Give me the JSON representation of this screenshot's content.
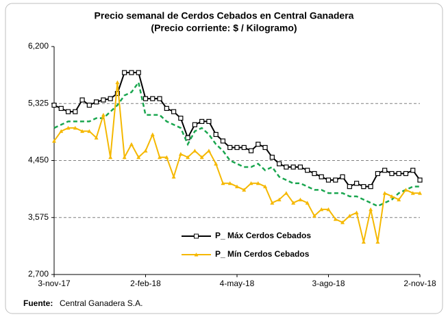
{
  "chart_data": {
    "type": "line",
    "title": "Precio semanal de Cerdos Cebados en Central Ganadera",
    "subtitle": "(Precio corriente: $ / Kilogramo)",
    "source_label": "Fuente:",
    "source": "Central Ganadera S.A.",
    "categories": [
      "3-nov-17",
      null,
      null,
      null,
      null,
      null,
      null,
      null,
      null,
      null,
      null,
      null,
      null,
      "2-feb-18",
      null,
      null,
      null,
      null,
      null,
      null,
      null,
      null,
      null,
      null,
      null,
      null,
      "4-may-18",
      null,
      null,
      null,
      null,
      null,
      null,
      null,
      null,
      null,
      null,
      null,
      null,
      "3-ago-18",
      null,
      null,
      null,
      null,
      null,
      null,
      null,
      null,
      null,
      null,
      null,
      null,
      "2-nov-18"
    ],
    "series": [
      {
        "name": "P_ Máx Cerdos Cebados",
        "color": "#000000",
        "marker": "square",
        "dash": false,
        "values": [
          5300,
          5250,
          5200,
          5200,
          5380,
          5300,
          5350,
          5380,
          5400,
          5480,
          5800,
          5800,
          5800,
          5400,
          5400,
          5400,
          5250,
          5200,
          5100,
          4800,
          5000,
          5050,
          5050,
          4850,
          4750,
          4650,
          4650,
          4650,
          4600,
          4700,
          4650,
          4500,
          4400,
          4350,
          4350,
          4350,
          4300,
          4250,
          4200,
          4150,
          4150,
          4200,
          4050,
          4100,
          4050,
          4050,
          4250,
          4300,
          4250,
          4250,
          4250,
          4300,
          4150
        ]
      },
      {
        "color": "#1aa64f",
        "marker": "none",
        "dash": true,
        "values": [
          4950,
          5000,
          5050,
          5050,
          5050,
          5050,
          5100,
          5100,
          5200,
          5300,
          5450,
          5500,
          5650,
          5150,
          5150,
          5150,
          5050,
          5000,
          4950,
          4700,
          4900,
          4950,
          4850,
          4700,
          4600,
          4450,
          4400,
          4350,
          4350,
          4400,
          4300,
          4350,
          4200,
          4150,
          4100,
          4100,
          4050,
          4000,
          4000,
          3950,
          3950,
          3950,
          3900,
          3900,
          3850,
          3800,
          3750,
          3800,
          3850,
          3950,
          4000,
          4050,
          4050
        ]
      },
      {
        "name": "P_ Mín Cerdos Cebados",
        "color": "#f5b800",
        "marker": "triangle",
        "dash": false,
        "values": [
          4750,
          4900,
          4950,
          4950,
          4900,
          4900,
          4800,
          5150,
          4500,
          5650,
          4500,
          4700,
          4500,
          4600,
          4850,
          4500,
          4500,
          4200,
          4550,
          4500,
          4600,
          4500,
          4600,
          4400,
          4100,
          4100,
          4050,
          4000,
          4100,
          4100,
          4050,
          3800,
          3850,
          3950,
          3800,
          3850,
          3800,
          3600,
          3700,
          3700,
          3550,
          3500,
          3600,
          3650,
          3200,
          3700,
          3200,
          3950,
          3900,
          3850,
          4000,
          3950,
          3950
        ]
      }
    ],
    "ylim": [
      2700,
      6200
    ],
    "yticks": [
      {
        "value": 2700,
        "label": "2,700"
      },
      {
        "value": 3575,
        "label": "3,575"
      },
      {
        "value": 4450,
        "label": "4,450"
      },
      {
        "value": 5325,
        "label": "5,325"
      },
      {
        "value": 6200,
        "label": "6,200"
      }
    ],
    "grid": true
  }
}
